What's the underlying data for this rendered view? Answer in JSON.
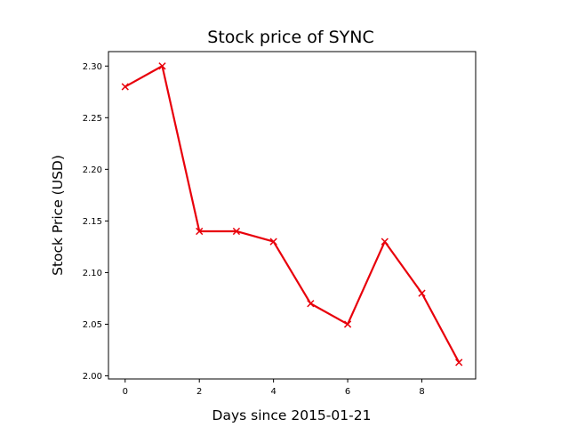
{
  "chart_data": {
    "type": "line",
    "title": "Stock price of SYNC",
    "xlabel": "Days since 2015-01-21",
    "ylabel": "Stock Price (USD)",
    "x": [
      0,
      1,
      2,
      3,
      4,
      5,
      6,
      7,
      8,
      9
    ],
    "series": [
      {
        "values": [
          2.28,
          2.3,
          2.14,
          2.14,
          2.13,
          2.07,
          2.05,
          2.13,
          2.08,
          2.013
        ],
        "color": "#e8000b",
        "marker": "x"
      }
    ],
    "xlim": [
      -0.45,
      9.45
    ],
    "ylim": [
      1.997,
      2.314
    ],
    "xticks": [
      0,
      2,
      4,
      6,
      8
    ],
    "yticks": [
      2.0,
      2.05,
      2.1,
      2.15,
      2.2,
      2.25,
      2.3
    ],
    "ytick_labels": [
      "2.00",
      "2.05",
      "2.10",
      "2.15",
      "2.20",
      "2.25",
      "2.30"
    ],
    "grid": false,
    "legend": "none"
  }
}
